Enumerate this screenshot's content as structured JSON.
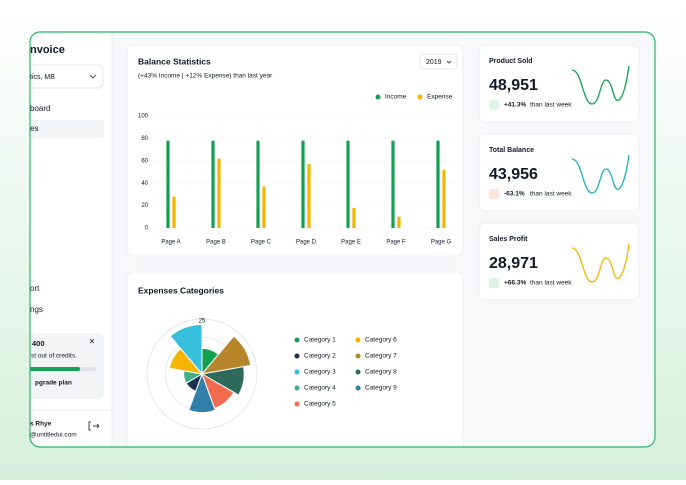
{
  "sidebar": {
    "brand": "nvoice",
    "workspace": "tics, MB",
    "nav": [
      "board",
      "es"
    ],
    "nav_bottom": [
      "ort",
      "ngs"
    ],
    "credits": {
      "title": "400",
      "text": "st out of credits.",
      "action": "pgrade plan"
    },
    "user": {
      "name": "s Rhye",
      "email": "@untitledui.com"
    }
  },
  "balance_chart": {
    "type": "bar",
    "title": "Balance Statistics",
    "subtitle": "(+43% Income | +12% Expense) than last year",
    "year": "2019",
    "categories": [
      "Page A",
      "Page B",
      "Page C",
      "Page D",
      "Page E",
      "Page F",
      "Page G"
    ],
    "series": [
      {
        "name": "Income",
        "color": "#12a150",
        "values": [
          78,
          78,
          78,
          78,
          78,
          78,
          78
        ]
      },
      {
        "name": "Expense",
        "color": "#f5b400",
        "values": [
          28,
          62,
          37,
          57,
          18,
          10,
          52
        ]
      }
    ],
    "ylim": [
      0,
      100
    ],
    "yticks": [
      0,
      20,
      40,
      60,
      80,
      100
    ],
    "grid": true
  },
  "expenses_chart": {
    "type": "polar",
    "title": "Expenses Categories",
    "categories": [
      "Category 1",
      "Category 2",
      "Category 3",
      "Category 4",
      "Category 5",
      "Category 6",
      "Category 7",
      "Category 8",
      "Category 9"
    ],
    "colors": [
      "#12a150",
      "#1b2f55",
      "#36c0dc",
      "#3fae85",
      "#f26b4f",
      "#f5b400",
      "#b8862a",
      "#2d6a5c",
      "#2f7fa8"
    ],
    "values": [
      14,
      10,
      27,
      10,
      20,
      18,
      27,
      23,
      21
    ],
    "rlim": [
      0,
      30
    ],
    "rticks": [
      25
    ]
  },
  "stats": [
    {
      "title": "Product Sold",
      "value": "48,951",
      "change": "+41.3%",
      "note": "than last week"
    },
    {
      "title": "Total Balance",
      "value": "43,956",
      "change": "-63.1%",
      "note": "than last week"
    },
    {
      "title": "Sales Profit",
      "value": "28,971",
      "change": "+66.3%",
      "note": "than last week"
    }
  ]
}
